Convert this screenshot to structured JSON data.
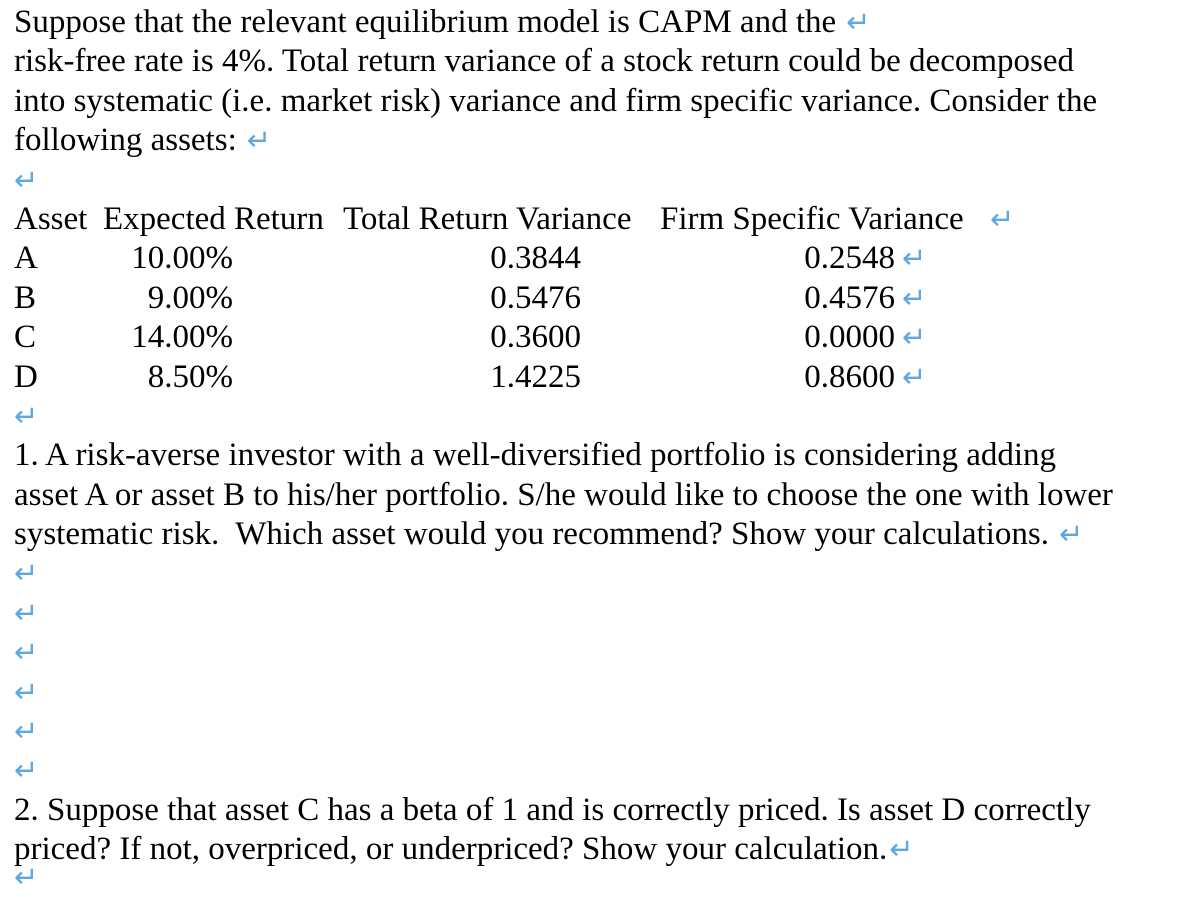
{
  "page": {
    "colors": {
      "background": "#ffffff",
      "text": "#000000",
      "return_mark": "#5ea7e0"
    },
    "return_mark_glyph": "↵",
    "table": {
      "columns": [
        "Asset",
        "Expected Return",
        "Total Return Variance",
        "Firm Specific Variance"
      ],
      "rows": [
        [
          "A",
          "10.00%",
          "0.3844",
          "0.2548"
        ],
        [
          "B",
          "9.00%",
          "0.5476",
          "0.4576"
        ],
        [
          "C",
          "14.00%",
          "0.3600",
          "0.0000"
        ],
        [
          "D",
          "8.50%",
          "1.4225",
          "0.8600"
        ]
      ]
    },
    "lines": [
      {
        "kind": "text",
        "text": "Suppose that the relevant equilibrium model is CAPM and the",
        "mark": true,
        "space": true
      },
      {
        "kind": "text",
        "text": "risk-free rate is 4%. Total return variance of a stock return could be decomposed",
        "mark": false
      },
      {
        "kind": "text",
        "text": "into systematic (i.e. market risk) variance and firm specific variance. Consider the",
        "mark": false
      },
      {
        "kind": "text",
        "text": "following assets:",
        "mark": true,
        "space": true
      },
      {
        "kind": "blank"
      },
      {
        "kind": "table_header"
      },
      {
        "kind": "table_row",
        "row": 0
      },
      {
        "kind": "table_row",
        "row": 1
      },
      {
        "kind": "table_row",
        "row": 2
      },
      {
        "kind": "table_row",
        "row": 3
      },
      {
        "kind": "blank"
      },
      {
        "kind": "text",
        "text": "1. A risk-averse investor with a well-diversified portfolio is considering adding",
        "mark": false
      },
      {
        "kind": "text",
        "text": "asset A or asset B to his/her portfolio. S/he would like to choose the one with lower",
        "mark": false
      },
      {
        "kind": "text",
        "text": "systematic risk.  Which asset would you recommend? Show your calculations.",
        "mark": true,
        "space": true
      },
      {
        "kind": "blank"
      },
      {
        "kind": "blank"
      },
      {
        "kind": "blank"
      },
      {
        "kind": "blank"
      },
      {
        "kind": "blank"
      },
      {
        "kind": "blank"
      },
      {
        "kind": "text",
        "text": "2. Suppose that asset C has a beta of 1 and is correctly priced. Is asset D correctly",
        "mark": false
      },
      {
        "kind": "text",
        "text": "priced? If not, overpriced, or underpriced? Show your calculation.",
        "mark": true,
        "space": false
      },
      {
        "kind": "blank",
        "partial": true
      }
    ]
  }
}
